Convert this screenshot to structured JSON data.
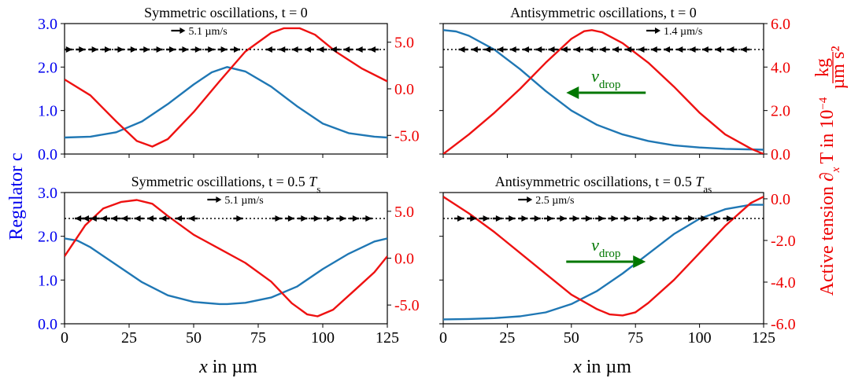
{
  "colors": {
    "regulator": "#1f77b4",
    "tension": "#ee1111",
    "left_axis": "#0000ee",
    "right_axis": "#ee0000",
    "flow": "#000000",
    "drop": "#007700"
  },
  "labels": {
    "ylabel_left": "Regulator c",
    "ylabel_right": "Active tension ∂ₓT in 10⁻⁴ kg/(µm s²)",
    "ylabel_right_main": "Active tension ∂",
    "ylabel_right_sub": "x",
    "ylabel_right_T": "T in 10",
    "ylabel_right_exp": "−4",
    "ylabel_right_num": "kg",
    "ylabel_right_den": "µm s²",
    "xlabel": "x in µm",
    "xlabel_x": "x",
    "xlabel_rest": " in µm",
    "vdrop_v": "v",
    "vdrop_sub": "drop"
  },
  "chart_data": [
    {
      "type": "line",
      "title": "Symmetric oscillations, t = 0",
      "xlim": [
        0,
        125
      ],
      "x_ticks": [],
      "ylim_left": [
        0.0,
        3.0
      ],
      "y_ticks_left": [
        "0.0",
        "1.0",
        "2.0",
        "3.0"
      ],
      "ylim_right": [
        -7.0,
        7.0
      ],
      "y_ticks_right": [
        {
          "v": -5,
          "l": "-5.0"
        },
        {
          "v": 0,
          "l": "0.0"
        },
        {
          "v": 5,
          "l": "5.0"
        }
      ],
      "speed_label": "5.1 µm/s",
      "series": [
        {
          "axis": "left",
          "x": [
            0,
            10,
            20,
            30,
            40,
            50,
            57,
            63,
            70,
            80,
            90,
            100,
            110,
            120,
            125
          ],
          "y": [
            0.38,
            0.4,
            0.5,
            0.75,
            1.15,
            1.6,
            1.88,
            2.0,
            1.9,
            1.55,
            1.1,
            0.7,
            0.48,
            0.4,
            0.38
          ]
        },
        {
          "axis": "right",
          "x": [
            0,
            10,
            20,
            28,
            34,
            40,
            50,
            60,
            70,
            80,
            85,
            91,
            97,
            105,
            115,
            125
          ],
          "y": [
            1.0,
            -0.7,
            -3.5,
            -5.6,
            -6.2,
            -5.4,
            -2.5,
            0.8,
            4.0,
            6.0,
            6.5,
            6.5,
            5.8,
            4.0,
            2.2,
            0.8
          ]
        }
      ],
      "flow": {
        "arrows": [
          {
            "x": 3,
            "d": 1
          },
          {
            "x": 8,
            "d": 1
          },
          {
            "x": 13,
            "d": 1
          },
          {
            "x": 18,
            "d": 1
          },
          {
            "x": 23,
            "d": 1
          },
          {
            "x": 28,
            "d": 1
          },
          {
            "x": 33,
            "d": 1
          },
          {
            "x": 38,
            "d": 1
          },
          {
            "x": 43,
            "d": 1
          },
          {
            "x": 48,
            "d": 1
          },
          {
            "x": 53,
            "d": 1
          },
          {
            "x": 58,
            "d": 1
          },
          {
            "x": 63,
            "d": 1
          },
          {
            "x": 68,
            "d": 1
          },
          {
            "x": 78,
            "d": -1
          },
          {
            "x": 83,
            "d": -1
          },
          {
            "x": 88,
            "d": -1
          },
          {
            "x": 93,
            "d": -1
          },
          {
            "x": 98,
            "d": -1
          },
          {
            "x": 103,
            "d": -1
          },
          {
            "x": 108,
            "d": -1
          },
          {
            "x": 113,
            "d": -1
          },
          {
            "x": 118,
            "d": -1
          }
        ]
      },
      "drop": null
    },
    {
      "type": "line",
      "title": "Antisymmetric oscillations, t = 0",
      "xlim": [
        0,
        125
      ],
      "x_ticks": [],
      "ylim_left": [
        0.0,
        3.0
      ],
      "y_ticks_left": [],
      "ylim_right": [
        0.0,
        6.0
      ],
      "y_ticks_right": [
        {
          "v": 0,
          "l": "0.0"
        },
        {
          "v": 2,
          "l": "2.0"
        },
        {
          "v": 4,
          "l": "4.0"
        },
        {
          "v": 6,
          "l": "6.0"
        }
      ],
      "speed_label": "1.4 µm/s",
      "series": [
        {
          "axis": "left",
          "x": [
            0,
            5,
            10,
            20,
            30,
            40,
            50,
            60,
            70,
            80,
            90,
            100,
            110,
            125
          ],
          "y": [
            2.85,
            2.82,
            2.72,
            2.4,
            1.95,
            1.45,
            1.0,
            0.67,
            0.45,
            0.3,
            0.2,
            0.15,
            0.12,
            0.1
          ]
        },
        {
          "axis": "right",
          "x": [
            0,
            10,
            20,
            30,
            40,
            50,
            55,
            58,
            62,
            70,
            80,
            90,
            100,
            110,
            120,
            125
          ],
          "y": [
            0.0,
            0.9,
            1.9,
            3.0,
            4.2,
            5.3,
            5.65,
            5.7,
            5.6,
            5.1,
            4.2,
            3.1,
            1.9,
            0.9,
            0.25,
            0.0
          ]
        }
      ],
      "flow": {
        "arrows": [
          {
            "x": 6,
            "d": -1
          },
          {
            "x": 11,
            "d": -1
          },
          {
            "x": 16,
            "d": -1
          },
          {
            "x": 21,
            "d": -1
          },
          {
            "x": 26,
            "d": -1
          },
          {
            "x": 31,
            "d": -1
          },
          {
            "x": 36,
            "d": -1
          },
          {
            "x": 41,
            "d": -1
          },
          {
            "x": 46,
            "d": -1
          },
          {
            "x": 51,
            "d": -1
          },
          {
            "x": 56,
            "d": -1
          },
          {
            "x": 61,
            "d": -1
          },
          {
            "x": 66,
            "d": -1
          },
          {
            "x": 71,
            "d": -1
          },
          {
            "x": 76,
            "d": -1
          },
          {
            "x": 81,
            "d": -1
          },
          {
            "x": 86,
            "d": -1
          },
          {
            "x": 91,
            "d": -1
          },
          {
            "x": 96,
            "d": -1
          },
          {
            "x": 101,
            "d": -1
          },
          {
            "x": 106,
            "d": -1
          },
          {
            "x": 111,
            "d": -1
          },
          {
            "x": 116,
            "d": -1
          }
        ]
      },
      "drop": {
        "direction": -1
      }
    },
    {
      "type": "line",
      "title": "Symmetric oscillations, t = 0.5 Ts",
      "title_main": "Symmetric oscillations, t = 0.5 ",
      "title_T": "T",
      "title_sub": "s",
      "xlim": [
        0,
        125
      ],
      "x_ticks": [
        0,
        25,
        50,
        75,
        100,
        125
      ],
      "ylim_left": [
        0.0,
        3.0
      ],
      "y_ticks_left": [
        "0.0",
        "1.0",
        "2.0",
        "3.0"
      ],
      "ylim_right": [
        -7.0,
        7.0
      ],
      "y_ticks_right": [
        {
          "v": -5,
          "l": "-5.0"
        },
        {
          "v": 0,
          "l": "0.0"
        },
        {
          "v": 5,
          "l": "5.0"
        }
      ],
      "speed_label": "5.1 µm/s",
      "series": [
        {
          "axis": "left",
          "x": [
            0,
            5,
            10,
            20,
            30,
            40,
            50,
            60,
            63,
            70,
            80,
            90,
            100,
            110,
            120,
            125
          ],
          "y": [
            1.95,
            1.9,
            1.75,
            1.35,
            0.95,
            0.65,
            0.5,
            0.45,
            0.45,
            0.48,
            0.6,
            0.85,
            1.25,
            1.6,
            1.88,
            1.95
          ]
        },
        {
          "axis": "right",
          "x": [
            0,
            8,
            15,
            22,
            28,
            34,
            40,
            50,
            60,
            70,
            80,
            88,
            94,
            98,
            104,
            112,
            120,
            125
          ],
          "y": [
            0.2,
            3.5,
            5.3,
            6.0,
            6.2,
            5.8,
            4.5,
            2.5,
            1.0,
            -0.5,
            -2.5,
            -4.8,
            -6.0,
            -6.2,
            -5.5,
            -3.5,
            -1.5,
            0.2
          ]
        }
      ],
      "flow": {
        "arrows": [
          {
            "x": 4,
            "d": -1
          },
          {
            "x": 7,
            "d": -1
          },
          {
            "x": 10,
            "d": -1
          },
          {
            "x": 14,
            "d": -1
          },
          {
            "x": 18,
            "d": -1
          },
          {
            "x": 22,
            "d": -1
          },
          {
            "x": 27,
            "d": -1
          },
          {
            "x": 32,
            "d": -1
          },
          {
            "x": 37,
            "d": -1
          },
          {
            "x": 43,
            "d": -1
          },
          {
            "x": 48,
            "d": -1
          },
          {
            "x": 69,
            "d": 1
          },
          {
            "x": 84,
            "d": 1
          },
          {
            "x": 89,
            "d": 1
          },
          {
            "x": 94,
            "d": 1
          },
          {
            "x": 99,
            "d": 1
          },
          {
            "x": 104,
            "d": 1
          },
          {
            "x": 109,
            "d": 1
          },
          {
            "x": 114,
            "d": 1
          },
          {
            "x": 119,
            "d": 1
          }
        ]
      },
      "drop": null
    },
    {
      "type": "line",
      "title": "Antisymmetric oscillations, t = 0.5 Tas",
      "title_main": "Antisymmetric oscillations, t = 0.5 ",
      "title_T": "T",
      "title_sub": "as",
      "xlim": [
        0,
        125
      ],
      "x_ticks": [
        0,
        25,
        50,
        75,
        100,
        125
      ],
      "ylim_left": [
        0.0,
        3.0
      ],
      "y_ticks_left": [],
      "ylim_right": [
        -6.0,
        0.3
      ],
      "y_ticks_right": [
        {
          "v": -6,
          "l": "-6.0"
        },
        {
          "v": -4,
          "l": "-4.0"
        },
        {
          "v": -2,
          "l": "-2.0"
        },
        {
          "v": 0,
          "l": "0.0"
        }
      ],
      "speed_label": "2.5 µm/s",
      "series": [
        {
          "axis": "left",
          "x": [
            0,
            10,
            20,
            30,
            40,
            50,
            60,
            70,
            80,
            90,
            100,
            110,
            120,
            125
          ],
          "y": [
            0.1,
            0.11,
            0.13,
            0.17,
            0.26,
            0.45,
            0.75,
            1.15,
            1.6,
            2.05,
            2.4,
            2.62,
            2.72,
            2.72
          ]
        },
        {
          "axis": "right",
          "x": [
            0,
            10,
            20,
            30,
            40,
            50,
            60,
            65,
            70,
            75,
            80,
            90,
            100,
            110,
            120,
            125
          ],
          "y": [
            0.1,
            -0.7,
            -1.6,
            -2.6,
            -3.6,
            -4.6,
            -5.3,
            -5.55,
            -5.6,
            -5.45,
            -5.0,
            -3.9,
            -2.6,
            -1.3,
            -0.2,
            0.1
          ]
        }
      ],
      "flow": {
        "arrows": [
          {
            "x": 8,
            "d": 1
          },
          {
            "x": 13,
            "d": 1
          },
          {
            "x": 18,
            "d": 1
          },
          {
            "x": 23,
            "d": 1
          },
          {
            "x": 28,
            "d": 1
          },
          {
            "x": 33,
            "d": 1
          },
          {
            "x": 38,
            "d": 1
          },
          {
            "x": 43,
            "d": 1
          },
          {
            "x": 48,
            "d": 1
          },
          {
            "x": 53,
            "d": 1
          },
          {
            "x": 58,
            "d": 1
          },
          {
            "x": 63,
            "d": 1
          },
          {
            "x": 68,
            "d": 1
          },
          {
            "x": 73,
            "d": 1
          },
          {
            "x": 78,
            "d": 1
          },
          {
            "x": 83,
            "d": 1
          },
          {
            "x": 88,
            "d": 1
          },
          {
            "x": 93,
            "d": 1
          },
          {
            "x": 98,
            "d": 1
          },
          {
            "x": 103,
            "d": 1
          },
          {
            "x": 108,
            "d": 1
          },
          {
            "x": 113,
            "d": 1
          }
        ]
      },
      "drop": {
        "direction": 1
      }
    }
  ]
}
